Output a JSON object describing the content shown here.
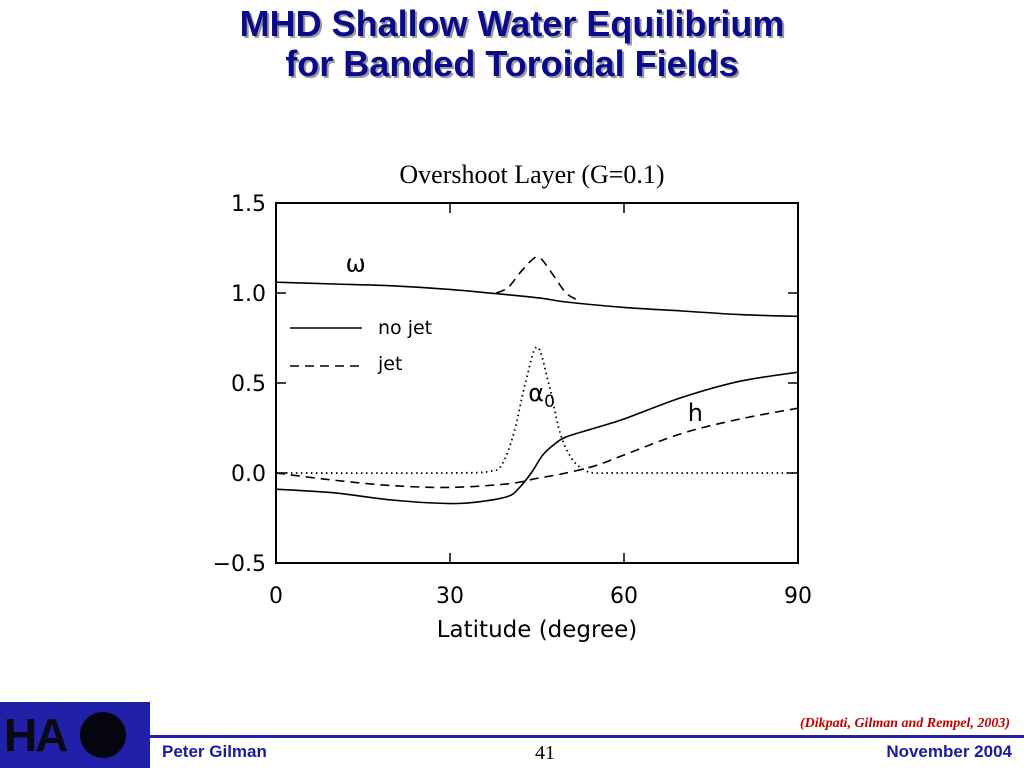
{
  "slide": {
    "title_line1": "MHD Shallow Water Equilibrium",
    "title_line2": "for Banded Toroidal Fields"
  },
  "footer": {
    "logo_text": "HA",
    "author": "Peter Gilman",
    "page_number": "41",
    "date": "November 2004",
    "citation": "(Dikpati, Gilman and Rempel, 2003)"
  },
  "colors": {
    "title": "#0a0a8c",
    "footer_bar": "#2020a8",
    "citation": "#c00000"
  },
  "chart_data": {
    "type": "line",
    "title": "Overshoot Layer (G=0.1)",
    "xlabel": "Latitude (degree)",
    "ylabel": "",
    "xlim": [
      0,
      90
    ],
    "ylim": [
      -0.5,
      1.5
    ],
    "x_ticks": [
      0,
      30,
      60,
      90
    ],
    "x_tick_labels": [
      "0",
      "30",
      "60",
      "90"
    ],
    "y_ticks": [
      -0.5,
      0.0,
      0.5,
      1.0,
      1.5
    ],
    "y_tick_labels": [
      "−0.5",
      "0.0",
      "0.5",
      "1.0",
      "1.5"
    ],
    "grid": false,
    "legend": {
      "placement": "upper-left",
      "entries": [
        {
          "label": "no jet",
          "style": "solid"
        },
        {
          "label": "jet",
          "style": "dashed"
        }
      ]
    },
    "annotations": [
      {
        "text": "ω",
        "x": 12,
        "y": 1.12
      },
      {
        "text": "α",
        "subscript": "0",
        "x": 43.5,
        "y": 0.4
      },
      {
        "text": "h",
        "x": 71,
        "y": 0.29
      }
    ],
    "series": [
      {
        "style": "solid",
        "x": [
          0,
          10,
          20,
          30,
          40,
          46,
          50,
          60,
          70,
          80,
          90
        ],
        "y": [
          1.06,
          1.05,
          1.04,
          1.02,
          0.99,
          0.97,
          0.95,
          0.92,
          0.9,
          0.88,
          0.87
        ]
      },
      {
        "style": "dashed",
        "x": [
          38,
          40,
          42,
          44,
          45,
          46,
          48,
          50,
          52
        ],
        "y": [
          1.0,
          1.03,
          1.11,
          1.18,
          1.2,
          1.18,
          1.09,
          1.0,
          0.96
        ]
      },
      {
        "style": "solid",
        "x": [
          0,
          10,
          20,
          30,
          35,
          40,
          42,
          44,
          46,
          48,
          50,
          55,
          60,
          70,
          80,
          90
        ],
        "y": [
          -0.09,
          -0.11,
          -0.15,
          -0.17,
          -0.16,
          -0.13,
          -0.08,
          0.0,
          0.1,
          0.16,
          0.2,
          0.25,
          0.3,
          0.42,
          0.51,
          0.56
        ]
      },
      {
        "style": "dashed",
        "x": [
          0,
          10,
          20,
          30,
          40,
          45,
          50,
          55,
          60,
          70,
          80,
          90
        ],
        "y": [
          0.0,
          -0.04,
          -0.07,
          -0.08,
          -0.06,
          -0.03,
          0.0,
          0.04,
          0.1,
          0.22,
          0.3,
          0.36
        ]
      },
      {
        "style": "dotted",
        "x": [
          0,
          30,
          37,
          39,
          41,
          43,
          45,
          47,
          49,
          51,
          53,
          55,
          60,
          90
        ],
        "y": [
          0.0,
          0.0,
          0.01,
          0.05,
          0.22,
          0.5,
          0.7,
          0.5,
          0.22,
          0.08,
          0.02,
          0.0,
          0.0,
          0.0
        ]
      }
    ]
  }
}
